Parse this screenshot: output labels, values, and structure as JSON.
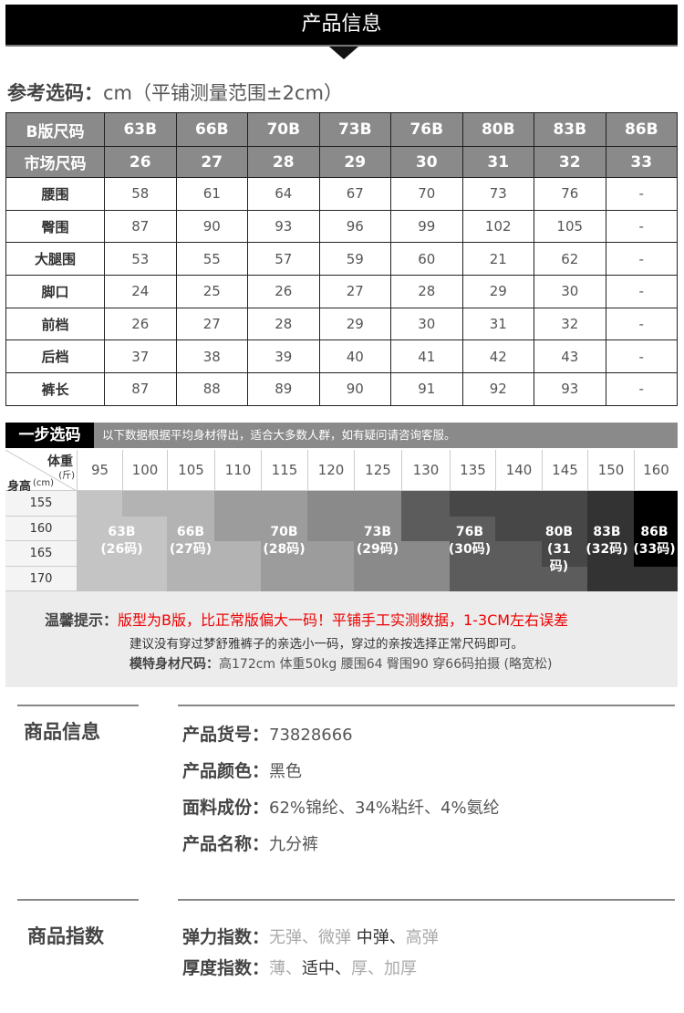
{
  "header": {
    "title": "产品信息"
  },
  "reference": {
    "label": "参考选码：",
    "note": "cm（平铺测量范围±2cm）"
  },
  "size_table": {
    "b_label": "B版尺码",
    "b_sizes": [
      "63B",
      "66B",
      "70B",
      "73B",
      "76B",
      "80B",
      "83B",
      "86B"
    ],
    "market_label": "市场尺码",
    "market_sizes": [
      "26",
      "27",
      "28",
      "29",
      "30",
      "31",
      "32",
      "33"
    ],
    "rows": [
      {
        "name": "腰围",
        "values": [
          "58",
          "61",
          "64",
          "67",
          "70",
          "73",
          "76",
          "-"
        ]
      },
      {
        "name": "臀围",
        "values": [
          "87",
          "90",
          "93",
          "96",
          "99",
          "102",
          "105",
          "-"
        ]
      },
      {
        "name": "大腿围",
        "values": [
          "53",
          "55",
          "57",
          "59",
          "60",
          "21",
          "62",
          "-"
        ]
      },
      {
        "name": "脚口",
        "values": [
          "24",
          "25",
          "26",
          "27",
          "28",
          "29",
          "30",
          "-"
        ]
      },
      {
        "name": "前档",
        "values": [
          "26",
          "27",
          "28",
          "29",
          "30",
          "31",
          "32",
          "-"
        ]
      },
      {
        "name": "后档",
        "values": [
          "37",
          "38",
          "39",
          "40",
          "41",
          "42",
          "43",
          "-"
        ]
      },
      {
        "name": "裤长",
        "values": [
          "87",
          "88",
          "89",
          "90",
          "91",
          "92",
          "93",
          "-"
        ]
      }
    ]
  },
  "step": {
    "title": "一步选码",
    "desc": "以下数据根据平均身材得出，适合大多数人群，如有疑问请咨询客服。",
    "weight_label": "体重",
    "weight_unit": "(斤)",
    "height_label": "身高",
    "height_unit": "(cm)",
    "weights": [
      "95",
      "100",
      "105",
      "110",
      "115",
      "120",
      "125",
      "130",
      "135",
      "140",
      "145",
      "150",
      "160"
    ],
    "heights": [
      "155",
      "160",
      "165",
      "170"
    ],
    "sizes": [
      [
        "63B",
        "(26码)"
      ],
      [
        "66B",
        "(27码)"
      ],
      [
        "70B",
        "(28码)"
      ],
      [
        "73B",
        "(29码)"
      ],
      [
        "76B",
        "(30码)"
      ],
      [
        "80B",
        "(31码)"
      ],
      [
        "83B",
        "(32码)"
      ],
      [
        "86B",
        "(33码)"
      ]
    ]
  },
  "tips": {
    "label": "温馨提示：",
    "red": "版型为B版，比正常版偏大一码！平铺手工实测数据，1-3CM左右误差",
    "line2": "建议没有穿过梦舒雅裤子的亲选小一码，穿过的亲按选择正常尺码即可。",
    "model_label": "模特身材尺码：",
    "model": "高172cm  体重50kg  腰围64  臀围90 穿66码拍摄 (略宽松)"
  },
  "product_info": {
    "title": "商品信息",
    "items": [
      {
        "label": "产品货号：",
        "value": "73828666"
      },
      {
        "label": "产品颜色：",
        "value": "黑色"
      },
      {
        "label": "面料成份：",
        "value": "62%锦纶、34%粘纤、4%氨纶"
      },
      {
        "label": "产品名称：",
        "value": "九分裤"
      }
    ]
  },
  "product_index": {
    "title": "商品指数",
    "elasticity": {
      "label": "弹力指数：",
      "options": [
        "无弹、",
        "微弹 ",
        "中弹、",
        "高弹"
      ],
      "selected": "中弹"
    },
    "thickness": {
      "label": "厚度指数：",
      "options": [
        "薄、",
        "适中、",
        "厚、",
        "加厚"
      ],
      "selected": "适中"
    }
  },
  "colors": {
    "header": "#000000",
    "table_head": "#8a8a8a",
    "warning": "#ee0000"
  }
}
